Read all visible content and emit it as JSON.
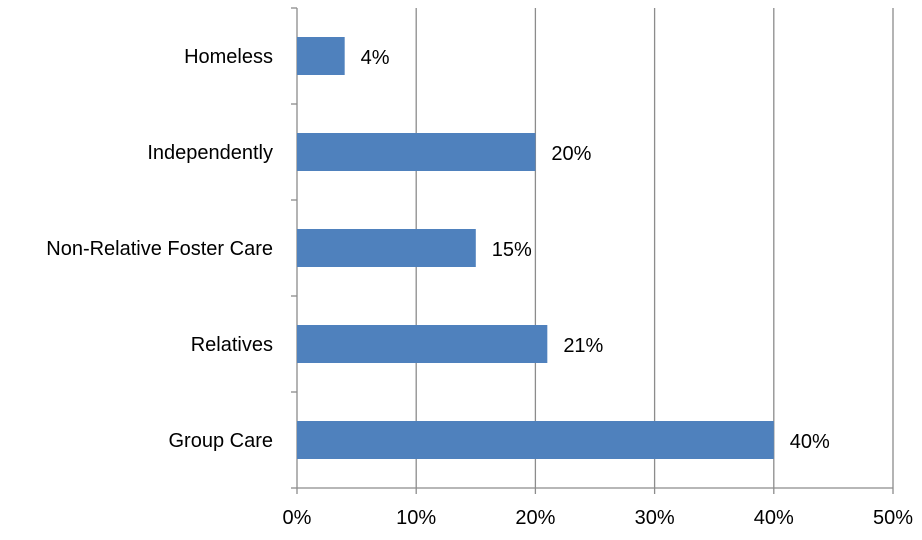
{
  "chart_data": {
    "type": "bar",
    "orientation": "horizontal",
    "categories": [
      "Homeless",
      "Independently",
      "Non-Relative Foster Care",
      "Relatives",
      "Group Care"
    ],
    "values": [
      4,
      20,
      15,
      21,
      40
    ],
    "data_labels": [
      "4%",
      "20%",
      "15%",
      "21%",
      "40%"
    ],
    "x_ticks": [
      "0%",
      "10%",
      "20%",
      "30%",
      "40%",
      "50%"
    ],
    "xlim": [
      0,
      50
    ],
    "title": "",
    "xlabel": "",
    "ylabel": "",
    "grid": "vertical",
    "legend": "none",
    "bar_color": "#4F81BD",
    "grid_color": "#8C8C8C"
  }
}
